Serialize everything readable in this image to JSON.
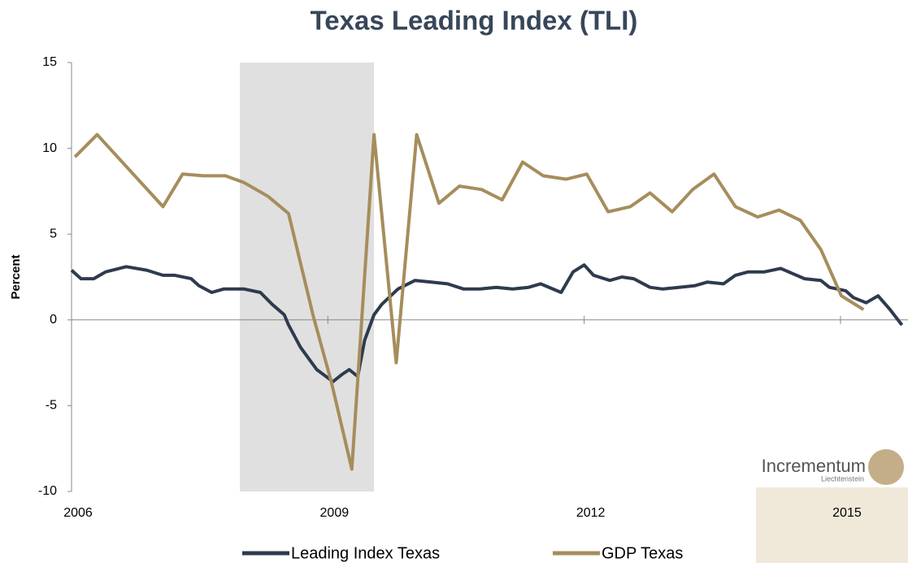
{
  "chart_data": {
    "type": "line",
    "title": "Texas Leading Index (TLI)",
    "y_label": "Percent",
    "xlim": [
      2006,
      2015.79
    ],
    "xticks": [
      2006,
      2009,
      2012,
      2015
    ],
    "ylim": [
      -10,
      15
    ],
    "yticks": [
      -10,
      -5,
      0,
      5,
      10,
      15
    ],
    "shaded_region": [
      2007.97,
      2009.54
    ],
    "shaded_color": "#e0e0e0",
    "legend_position": "bottom",
    "series": [
      {
        "name": "Leading Index Texas",
        "color": "#2e3b4e",
        "x": [
          2006.0,
          2006.11,
          2006.26,
          2006.4,
          2006.64,
          2006.88,
          2007.07,
          2007.21,
          2007.4,
          2007.49,
          2007.64,
          2007.78,
          2008.02,
          2008.21,
          2008.35,
          2008.49,
          2008.54,
          2008.68,
          2008.87,
          2009.06,
          2009.16,
          2009.25,
          2009.35,
          2009.43,
          2009.54,
          2009.63,
          2009.82,
          2010.02,
          2010.21,
          2010.4,
          2010.59,
          2010.78,
          2010.97,
          2011.16,
          2011.35,
          2011.49,
          2011.73,
          2011.87,
          2012.0,
          2012.11,
          2012.3,
          2012.44,
          2012.58,
          2012.77,
          2012.92,
          2013.11,
          2013.3,
          2013.44,
          2013.63,
          2013.77,
          2013.92,
          2014.11,
          2014.3,
          2014.44,
          2014.58,
          2014.77,
          2014.87,
          2015.06,
          2015.15,
          2015.3,
          2015.44,
          2015.58,
          2015.72
        ],
        "values": [
          2.9,
          2.4,
          2.4,
          2.8,
          3.1,
          2.9,
          2.6,
          2.6,
          2.4,
          2.0,
          1.6,
          1.8,
          1.8,
          1.6,
          0.9,
          0.3,
          -0.3,
          -1.6,
          -2.9,
          -3.6,
          -3.2,
          -2.9,
          -3.3,
          -1.2,
          0.3,
          0.9,
          1.8,
          2.3,
          2.2,
          2.1,
          1.8,
          1.8,
          1.9,
          1.8,
          1.9,
          2.1,
          1.6,
          2.8,
          3.2,
          2.6,
          2.3,
          2.5,
          2.4,
          1.9,
          1.8,
          1.9,
          2.0,
          2.2,
          2.1,
          2.6,
          2.8,
          2.8,
          3.0,
          2.7,
          2.4,
          2.3,
          1.9,
          1.7,
          1.3,
          1.0,
          1.4,
          0.6,
          -0.3
        ]
      },
      {
        "name": "GDP Texas",
        "color": "#a68d5c",
        "x": [
          2006.04,
          2006.3,
          2007.07,
          2007.3,
          2007.54,
          2007.8,
          2008.02,
          2008.3,
          2008.54,
          2008.83,
          2009.04,
          2009.28,
          2009.54,
          2009.8,
          2010.04,
          2010.3,
          2010.54,
          2010.8,
          2011.04,
          2011.28,
          2011.52,
          2011.79,
          2012.03,
          2012.28,
          2012.54,
          2012.77,
          2013.03,
          2013.27,
          2013.52,
          2013.77,
          2014.03,
          2014.28,
          2014.53,
          2014.77,
          2015.01,
          2015.27
        ],
        "values": [
          9.5,
          10.8,
          6.6,
          8.5,
          8.4,
          8.4,
          8.0,
          7.2,
          6.2,
          0.2,
          -3.6,
          -8.7,
          10.8,
          -2.5,
          10.8,
          6.8,
          7.8,
          7.6,
          7.0,
          9.2,
          8.4,
          8.2,
          8.5,
          6.3,
          6.6,
          7.4,
          6.3,
          7.6,
          8.5,
          6.6,
          6.0,
          6.4,
          5.8,
          4.1,
          1.4,
          0.6
        ]
      }
    ]
  },
  "watermark": {
    "name": "Incrementum",
    "subtitle": "Liechtenstein"
  }
}
